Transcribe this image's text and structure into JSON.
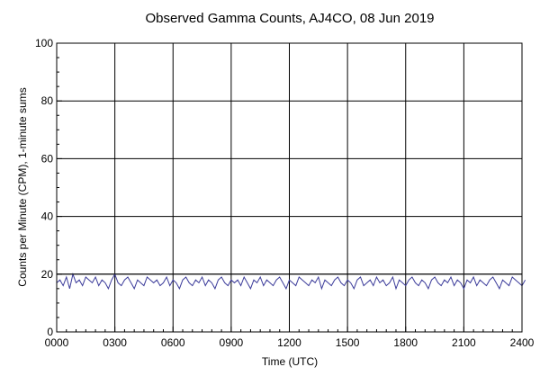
{
  "chart_data": {
    "type": "line",
    "title": "Observed Gamma Counts, AJ4CO, 08 Jun 2019",
    "xlabel": "Time (UTC)",
    "ylabel": "Counts per Minute (CPM), 1-minute sums",
    "xlim": [
      0,
      1440
    ],
    "ylim": [
      0,
      100
    ],
    "x_ticks": [
      {
        "minute": 0,
        "label": "0000"
      },
      {
        "minute": 180,
        "label": "0300"
      },
      {
        "minute": 360,
        "label": "0600"
      },
      {
        "minute": 540,
        "label": "0900"
      },
      {
        "minute": 720,
        "label": "1200"
      },
      {
        "minute": 900,
        "label": "1500"
      },
      {
        "minute": 1080,
        "label": "1800"
      },
      {
        "minute": 1260,
        "label": "2100"
      },
      {
        "minute": 1440,
        "label": "2400"
      }
    ],
    "y_ticks": [
      0,
      20,
      40,
      60,
      80,
      100
    ],
    "grid": true,
    "reference_line": 20,
    "series": [
      {
        "color": "#3b3b9a",
        "x_unit": "minute",
        "x_step": 10,
        "values": [
          17,
          18,
          16,
          19,
          15,
          20,
          17,
          18,
          16,
          19,
          18,
          17,
          19,
          16,
          18,
          17,
          15,
          18,
          20,
          17,
          16,
          18,
          19,
          17,
          15,
          18,
          17,
          16,
          19,
          18,
          17,
          18,
          16,
          17,
          19,
          16,
          18,
          17,
          15,
          18,
          19,
          17,
          16,
          18,
          17,
          19,
          16,
          18,
          17,
          15,
          18,
          19,
          17,
          16,
          18,
          17,
          18,
          16,
          19,
          17,
          15,
          18,
          17,
          19,
          16,
          18,
          17,
          16,
          18,
          19,
          17,
          15,
          18,
          17,
          16,
          19,
          18,
          17,
          16,
          18,
          17,
          19,
          15,
          18,
          17,
          16,
          18,
          19,
          17,
          16,
          18,
          17,
          15,
          18,
          19,
          16,
          17,
          18,
          16,
          19,
          17,
          18,
          16,
          17,
          19,
          15,
          18,
          17,
          16,
          18,
          19,
          17,
          16,
          18,
          17,
          15,
          18,
          19,
          17,
          16,
          18,
          17,
          19,
          16,
          18,
          17,
          15,
          18,
          17,
          19,
          16,
          18,
          17,
          16,
          18,
          19,
          17,
          15,
          18,
          17,
          16,
          19,
          18,
          17,
          16,
          18
        ]
      }
    ]
  }
}
